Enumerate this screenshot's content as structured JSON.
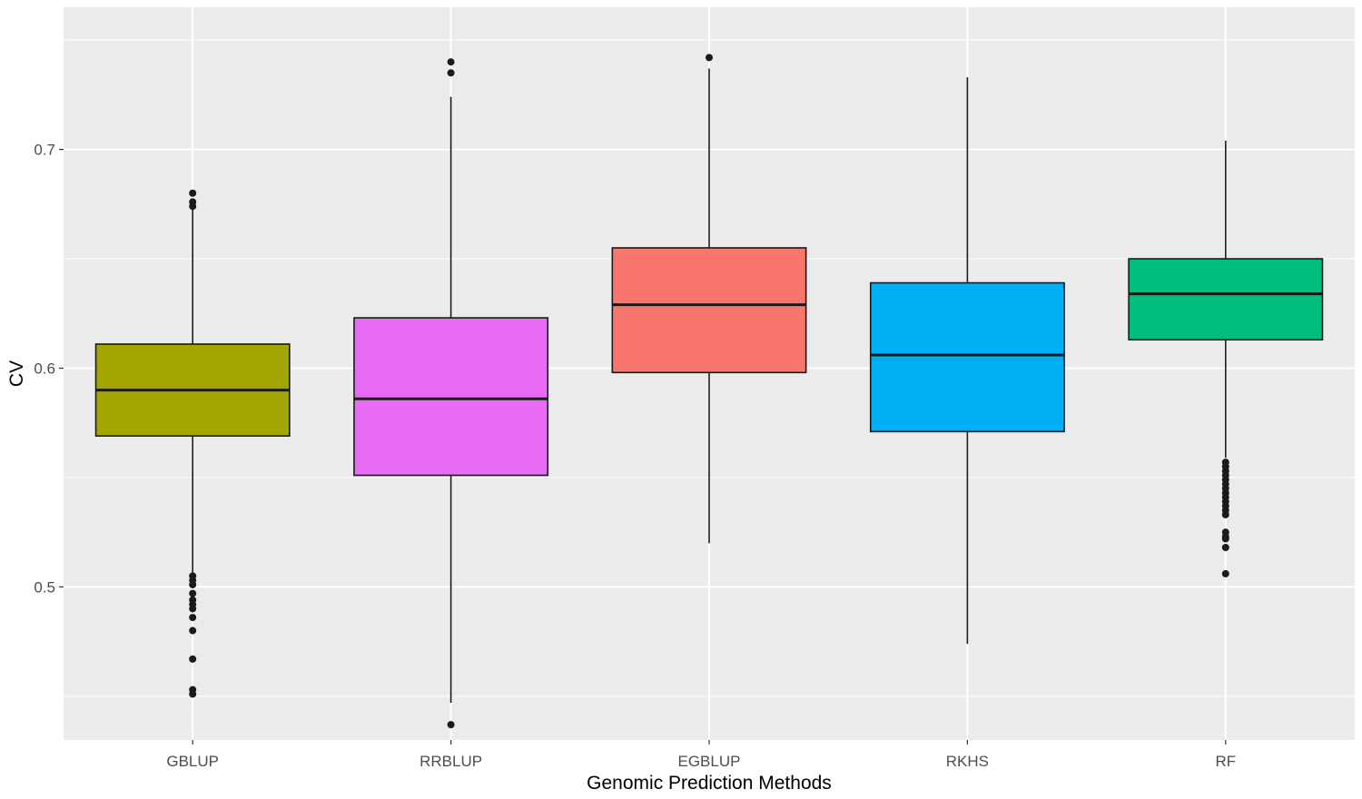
{
  "chart_data": {
    "type": "box",
    "title": "",
    "xlabel": "Genomic Prediction Methods",
    "ylabel": "CV",
    "ylim": [
      0.43,
      0.765
    ],
    "yticks": [
      0.5,
      0.6,
      0.7
    ],
    "ytick_labels": [
      "0.5",
      "0.6",
      "0.7"
    ],
    "grid": true,
    "legend": "none",
    "background": "#ebebeb",
    "categories": [
      "GBLUP",
      "RRBLUP",
      "EGBLUP",
      "RKHS",
      "RF"
    ],
    "boxes": [
      {
        "name": "GBLUP",
        "color": "#a3a500",
        "whisker_low": 0.506,
        "q1": 0.569,
        "median": 0.59,
        "q3": 0.611,
        "whisker_high": 0.673,
        "outliers": [
          0.68,
          0.676,
          0.674,
          0.505,
          0.503,
          0.501,
          0.497,
          0.494,
          0.492,
          0.49,
          0.486,
          0.48,
          0.467,
          0.453,
          0.451
        ]
      },
      {
        "name": "RRBLUP",
        "color": "#e76bf3",
        "whisker_low": 0.447,
        "q1": 0.551,
        "median": 0.586,
        "q3": 0.623,
        "whisker_high": 0.724,
        "outliers": [
          0.74,
          0.735,
          0.437
        ]
      },
      {
        "name": "EGBLUP",
        "color": "#f8766d",
        "whisker_low": 0.52,
        "q1": 0.598,
        "median": 0.629,
        "q3": 0.655,
        "whisker_high": 0.737,
        "outliers": [
          0.742
        ]
      },
      {
        "name": "RKHS",
        "color": "#00b0f6",
        "whisker_low": 0.474,
        "q1": 0.571,
        "median": 0.606,
        "q3": 0.639,
        "whisker_high": 0.733,
        "outliers": []
      },
      {
        "name": "RF",
        "color": "#00bf7d",
        "whisker_low": 0.559,
        "q1": 0.613,
        "median": 0.634,
        "q3": 0.65,
        "whisker_high": 0.704,
        "outliers": [
          0.557,
          0.555,
          0.553,
          0.551,
          0.549,
          0.547,
          0.545,
          0.543,
          0.541,
          0.539,
          0.537,
          0.535,
          0.533,
          0.525,
          0.523,
          0.522,
          0.518,
          0.506
        ]
      }
    ]
  }
}
